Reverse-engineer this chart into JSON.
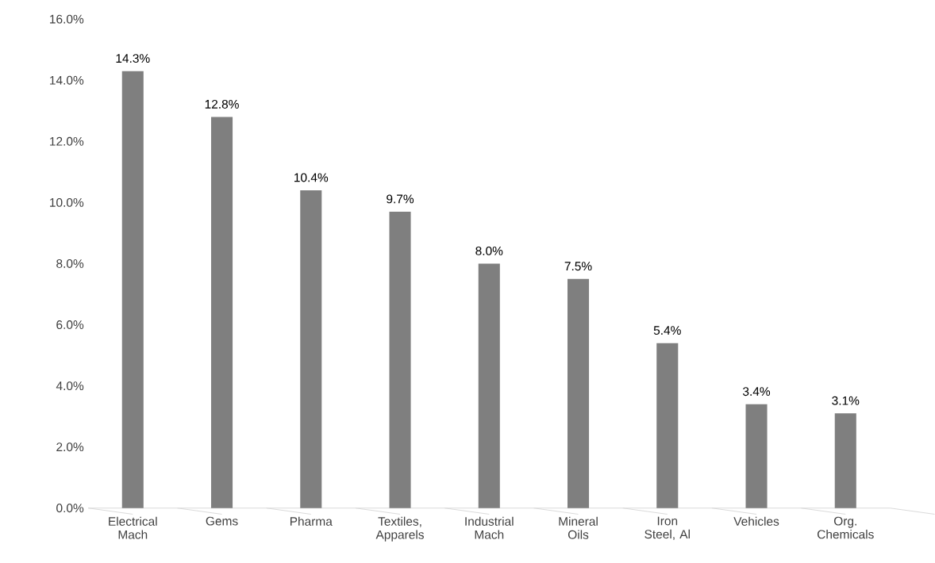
{
  "chart_data": {
    "type": "bar",
    "categories": [
      "Electrical Mach",
      "Gems",
      "Pharma",
      "Textiles, Apparels",
      "Industrial Mach",
      "Mineral Oils",
      "Iron Steel, Al",
      "Vehicles",
      "Org. Chemicals"
    ],
    "values": [
      14.3,
      12.8,
      10.4,
      9.7,
      8.0,
      7.5,
      5.4,
      3.4,
      3.1
    ],
    "value_labels": [
      "14.3%",
      "12.8%",
      "10.4%",
      "9.7%",
      "8.0%",
      "7.5%",
      "5.4%",
      "3.4%",
      "3.1%"
    ],
    "color": "#7f7f7f",
    "ylim": [
      0,
      16
    ],
    "yticks": [
      {
        "value": 0,
        "label": "0.0%"
      },
      {
        "value": 2,
        "label": "2.0%"
      },
      {
        "value": 4,
        "label": "4.0%"
      },
      {
        "value": 6,
        "label": "6.0%"
      },
      {
        "value": 8,
        "label": "8.0%"
      },
      {
        "value": 10,
        "label": "10.0%"
      },
      {
        "value": 12,
        "label": "12.0%"
      },
      {
        "value": 14,
        "label": "14.0%"
      },
      {
        "value": 16,
        "label": "16.0%"
      }
    ],
    "grid": false
  }
}
